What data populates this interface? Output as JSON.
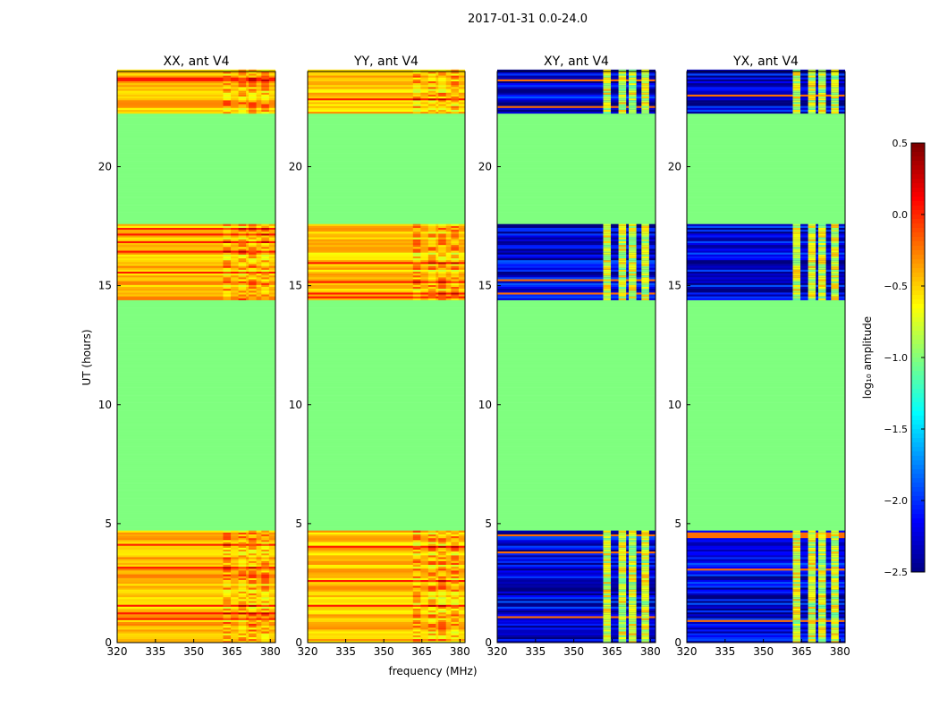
{
  "figure": {
    "suptitle": "2017-01-31 0.0-24.0",
    "ylabel": "UT (hours)",
    "xlabel": "frequency (MHz)"
  },
  "colors": {
    "axis": "#000000",
    "background": "#ffffff",
    "cmap": [
      "#00007f",
      "#0000ff",
      "#007fff",
      "#00ffff",
      "#7fff7f",
      "#ffff00",
      "#ff7f00",
      "#ff0000",
      "#7f0000"
    ]
  },
  "chart_data": [
    {
      "type": "heatmap",
      "title": "XX, ant V4",
      "xlim": [
        320,
        382
      ],
      "ylim": [
        0,
        24
      ],
      "xticks": [
        320,
        335,
        350,
        365,
        380
      ],
      "yticks": [
        0,
        5,
        10,
        15,
        20
      ],
      "flagged_bands_hours": [
        [
          4.65,
          14.4
        ],
        [
          17.55,
          22.2
        ]
      ],
      "rfi_channels_mhz": [
        363,
        369,
        373,
        378
      ],
      "approx_level_log10": -0.4
    },
    {
      "type": "heatmap",
      "title": "YY, ant V4",
      "xlim": [
        320,
        382
      ],
      "ylim": [
        0,
        24
      ],
      "xticks": [
        320,
        335,
        350,
        365,
        380
      ],
      "yticks": [
        0,
        5,
        10,
        15,
        20
      ],
      "flagged_bands_hours": [
        [
          4.65,
          14.4
        ],
        [
          17.55,
          22.2
        ]
      ],
      "rfi_channels_mhz": [
        363,
        369,
        373,
        378
      ],
      "approx_level_log10": -0.45
    },
    {
      "type": "heatmap",
      "title": "XY, ant V4",
      "xlim": [
        320,
        382
      ],
      "ylim": [
        0,
        24
      ],
      "xticks": [
        320,
        335,
        350,
        365,
        380
      ],
      "yticks": [
        0,
        5,
        10,
        15,
        20
      ],
      "flagged_bands_hours": [
        [
          4.65,
          14.4
        ],
        [
          17.55,
          22.2
        ]
      ],
      "rfi_channels_mhz": [
        363,
        369,
        373,
        378
      ],
      "approx_level_log10": -2.2
    },
    {
      "type": "heatmap",
      "title": "YX, ant V4",
      "xlim": [
        320,
        382
      ],
      "ylim": [
        0,
        24
      ],
      "xticks": [
        320,
        335,
        350,
        365,
        380
      ],
      "yticks": [
        0,
        5,
        10,
        15,
        20
      ],
      "flagged_bands_hours": [
        [
          4.65,
          14.4
        ],
        [
          17.55,
          22.2
        ]
      ],
      "rfi_channels_mhz": [
        363,
        369,
        373,
        378
      ],
      "approx_level_log10": -2.2
    },
    {
      "type": "colorbar",
      "label": "log₁₀ amplitude",
      "range": [
        -2.5,
        0.5
      ],
      "ticks": [
        0.5,
        0.0,
        -0.5,
        -1.0,
        -1.5,
        -2.0,
        -2.5
      ],
      "tick_labels": [
        "0.5",
        "0.0",
        "−0.5",
        "−1.0",
        "−1.5",
        "−2.0",
        "−2.5"
      ]
    }
  ]
}
